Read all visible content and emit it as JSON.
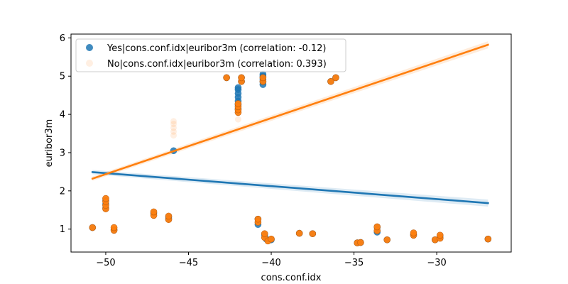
{
  "chart_data": {
    "type": "scatter",
    "xlabel": "cons.conf.idx",
    "ylabel": "euribor3m",
    "xlim": [
      -52.1,
      -25.5
    ],
    "ylim": [
      0.4,
      6.1
    ],
    "xticks": [
      -50,
      -45,
      -40,
      -35,
      -30
    ],
    "xtick_labels": [
      "−50",
      "−45",
      "−40",
      "−35",
      "−30"
    ],
    "yticks": [
      1,
      2,
      3,
      4,
      5,
      6
    ],
    "ytick_labels": [
      "1",
      "2",
      "3",
      "4",
      "5",
      "6"
    ],
    "grid": false,
    "legend_position": "top-left",
    "series": [
      {
        "name": "Yes|cons.conf.idx|euribor3m (correlation: -0.12)",
        "color": "#1f77b4",
        "points": [
          [
            -50.8,
            1.04
          ],
          [
            -50.0,
            1.55
          ],
          [
            -50.0,
            1.65
          ],
          [
            -50.0,
            1.75
          ],
          [
            -49.5,
            0.98
          ],
          [
            -47.1,
            1.42
          ],
          [
            -46.2,
            1.27
          ],
          [
            -46.2,
            1.32
          ],
          [
            -45.9,
            3.05
          ],
          [
            -42.7,
            4.96
          ],
          [
            -42.0,
            4.15
          ],
          [
            -42.0,
            4.25
          ],
          [
            -42.0,
            4.35
          ],
          [
            -42.0,
            4.45
          ],
          [
            -42.0,
            4.55
          ],
          [
            -42.0,
            4.65
          ],
          [
            -42.0,
            4.7
          ],
          [
            -41.8,
            4.86
          ],
          [
            -41.8,
            4.96
          ],
          [
            -40.5,
            4.78
          ],
          [
            -40.5,
            4.85
          ],
          [
            -40.5,
            4.92
          ],
          [
            -40.5,
            5.0
          ],
          [
            -40.5,
            5.05
          ],
          [
            -40.8,
            1.12
          ],
          [
            -40.8,
            1.26
          ],
          [
            -40.4,
            0.85
          ],
          [
            -40.3,
            0.74
          ],
          [
            -40.0,
            0.72
          ],
          [
            -38.3,
            0.89
          ],
          [
            -37.5,
            0.88
          ],
          [
            -36.4,
            4.86
          ],
          [
            -36.1,
            4.96
          ],
          [
            -34.8,
            0.64
          ],
          [
            -34.6,
            0.65
          ],
          [
            -33.6,
            0.92
          ],
          [
            -33.6,
            1.05
          ],
          [
            -33.0,
            0.72
          ],
          [
            -31.4,
            0.85
          ],
          [
            -30.1,
            0.72
          ],
          [
            -29.8,
            0.79
          ],
          [
            -26.9,
            0.74
          ]
        ],
        "fit": {
          "x": [
            -50.8,
            -26.9
          ],
          "y": [
            2.49,
            1.68
          ]
        }
      },
      {
        "name": "No|cons.conf.idx|euribor3m (correlation: 0.393)",
        "color": "#ff7f0e",
        "points": [
          [
            -50.8,
            1.04
          ],
          [
            -50.0,
            1.53
          ],
          [
            -50.0,
            1.62
          ],
          [
            -50.0,
            1.72
          ],
          [
            -50.0,
            1.8
          ],
          [
            -49.5,
            0.97
          ],
          [
            -49.5,
            1.04
          ],
          [
            -47.1,
            1.36
          ],
          [
            -47.1,
            1.45
          ],
          [
            -46.2,
            1.25
          ],
          [
            -46.2,
            1.34
          ],
          [
            -45.9,
            3.45
          ],
          [
            -45.9,
            3.55
          ],
          [
            -45.9,
            3.65
          ],
          [
            -45.9,
            3.75
          ],
          [
            -45.9,
            3.82
          ],
          [
            -42.7,
            4.96
          ],
          [
            -42.0,
            3.87
          ],
          [
            -42.0,
            4.05
          ],
          [
            -42.0,
            4.12
          ],
          [
            -42.0,
            4.2
          ],
          [
            -42.0,
            4.28
          ],
          [
            -41.8,
            4.86
          ],
          [
            -41.8,
            4.96
          ],
          [
            -40.5,
            4.86
          ],
          [
            -40.5,
            4.96
          ],
          [
            -40.8,
            1.18
          ],
          [
            -40.8,
            1.26
          ],
          [
            -40.4,
            0.78
          ],
          [
            -40.4,
            0.88
          ],
          [
            -40.2,
            0.69
          ],
          [
            -40.0,
            0.74
          ],
          [
            -38.3,
            0.89
          ],
          [
            -37.5,
            0.88
          ],
          [
            -36.4,
            4.86
          ],
          [
            -36.1,
            4.96
          ],
          [
            -34.8,
            0.64
          ],
          [
            -34.6,
            0.65
          ],
          [
            -33.6,
            0.96
          ],
          [
            -33.6,
            1.06
          ],
          [
            -33.0,
            0.72
          ],
          [
            -31.4,
            0.84
          ],
          [
            -31.4,
            0.9
          ],
          [
            -30.1,
            0.72
          ],
          [
            -29.8,
            0.76
          ],
          [
            -29.8,
            0.84
          ],
          [
            -26.9,
            0.74
          ]
        ],
        "fit": {
          "x": [
            -50.8,
            -26.9
          ],
          "y": [
            2.32,
            5.82
          ]
        }
      }
    ]
  }
}
